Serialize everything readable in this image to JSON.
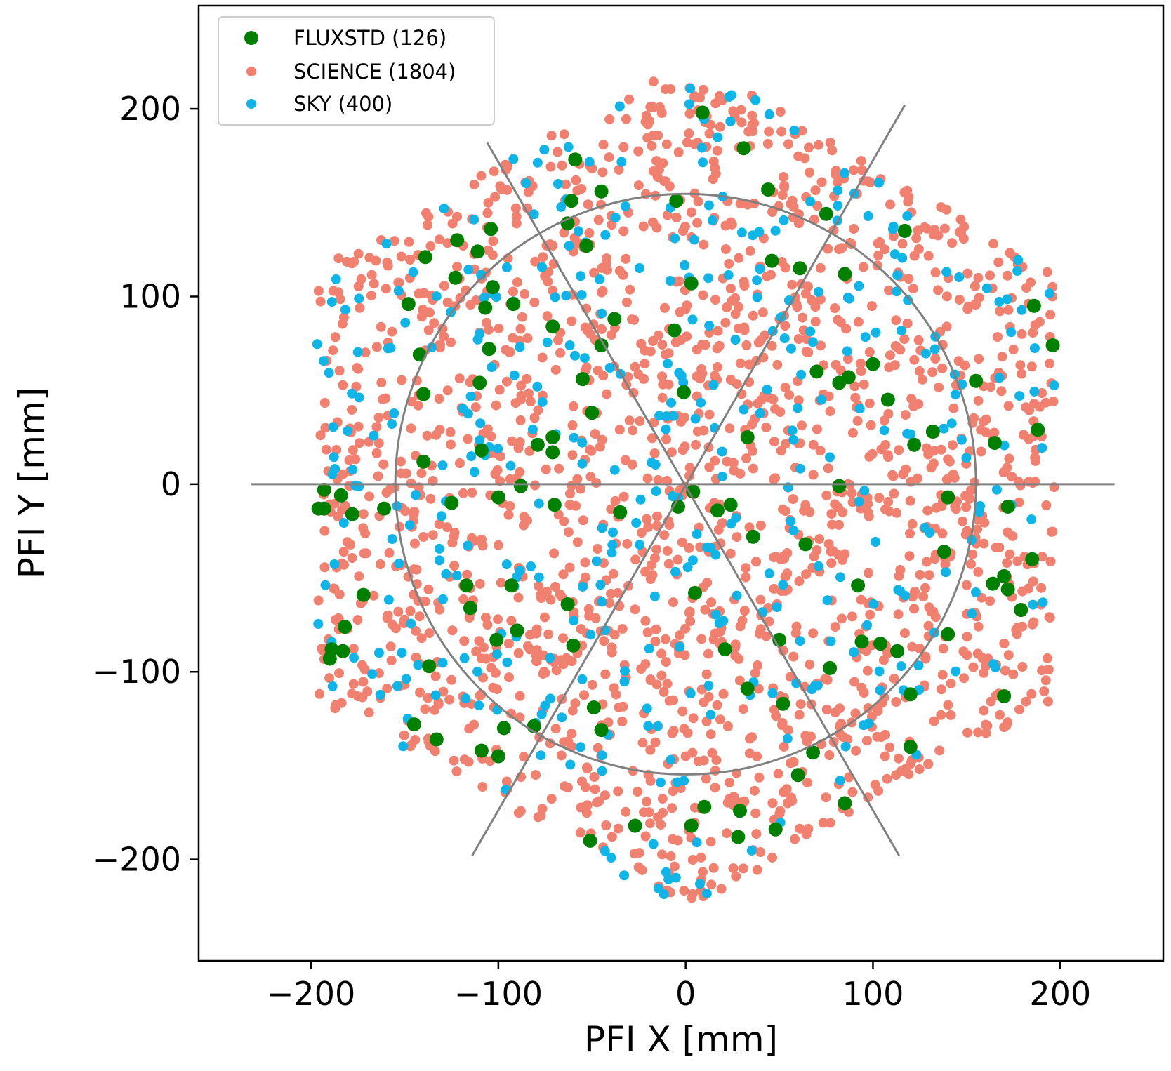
{
  "chart_data": {
    "type": "scatter",
    "title": "",
    "xlabel": "PFI X [mm]",
    "ylabel": "PFI Y [mm]",
    "xlim": [
      -260,
      255
    ],
    "ylim": [
      -254,
      255
    ],
    "xticks": [
      -200,
      -100,
      0,
      100,
      200
    ],
    "yticks": [
      -200,
      -100,
      0,
      100,
      200
    ],
    "xtick_labels": [
      "−200",
      "−100",
      "0",
      "100",
      "200"
    ],
    "ytick_labels": [
      "−200",
      "−100",
      "0",
      "100",
      "200"
    ],
    "grid": false,
    "legend_position": "top-left",
    "field_shape": "hexagon",
    "field_vertices": [
      [
        0,
        228
      ],
      [
        197,
        114
      ],
      [
        197,
        -114
      ],
      [
        0,
        -228
      ],
      [
        -197,
        -114
      ],
      [
        -197,
        114
      ]
    ],
    "overlays": {
      "circle": {
        "center": [
          0,
          0
        ],
        "radius": 155,
        "color": "#808080"
      },
      "lines": [
        {
          "from": [
            -232,
            0
          ],
          "to": [
            229,
            0
          ]
        },
        {
          "from": [
            -106,
            182
          ],
          "to": [
            114,
            -198
          ]
        },
        {
          "from": [
            -114,
            -198
          ],
          "to": [
            117,
            202
          ]
        }
      ]
    },
    "series": [
      {
        "name": "FLUXSTD (126)",
        "count": 126,
        "color": "#007f00",
        "marker_size": "large",
        "seed": 11,
        "sample_points": [
          [
            9,
            198
          ],
          [
            31,
            179
          ],
          [
            -59,
            173
          ],
          [
            44,
            157
          ],
          [
            -61,
            151
          ],
          [
            -5,
            151
          ],
          [
            -45,
            156
          ],
          [
            75,
            144
          ],
          [
            -63,
            139
          ],
          [
            -104,
            136
          ],
          [
            117,
            135
          ],
          [
            -122,
            130
          ],
          [
            -53,
            127
          ],
          [
            -111,
            124
          ],
          [
            -139,
            121
          ],
          [
            46,
            119
          ],
          [
            61,
            115
          ],
          [
            85,
            112
          ],
          [
            -123,
            110
          ],
          [
            3,
            107
          ],
          [
            -103,
            105
          ],
          [
            -148,
            96
          ],
          [
            -92,
            96
          ],
          [
            186,
            95
          ],
          [
            -107,
            94
          ],
          [
            -38,
            88
          ],
          [
            -71,
            84
          ],
          [
            -6,
            82
          ],
          [
            -45,
            74
          ],
          [
            196,
            74
          ],
          [
            -142,
            69
          ],
          [
            -105,
            72
          ],
          [
            100,
            64
          ],
          [
            70,
            60
          ],
          [
            -55,
            56
          ],
          [
            87,
            57
          ],
          [
            82,
            54
          ],
          [
            -110,
            54
          ],
          [
            155,
            55
          ],
          [
            -1,
            49
          ],
          [
            108,
            45
          ],
          [
            -140,
            48
          ],
          [
            -50,
            38
          ],
          [
            -71,
            25
          ],
          [
            132,
            28
          ],
          [
            188,
            29
          ],
          [
            -79,
            21
          ],
          [
            33,
            25
          ],
          [
            -71,
            17
          ],
          [
            -109,
            18
          ],
          [
            165,
            22
          ],
          [
            122,
            21
          ],
          [
            -140,
            12
          ],
          [
            -88,
            -1
          ],
          [
            82,
            -1
          ],
          [
            4,
            -4
          ],
          [
            -193,
            -3
          ],
          [
            -184,
            -6
          ],
          [
            -100,
            -7
          ],
          [
            140,
            -7
          ],
          [
            -125,
            -10
          ],
          [
            -70,
            -11
          ],
          [
            -161,
            -13
          ],
          [
            -4,
            -12
          ],
          [
            24,
            -11
          ],
          [
            -196,
            -13
          ],
          [
            17,
            -14
          ],
          [
            -35,
            -15
          ],
          [
            172,
            -12
          ],
          [
            -178,
            -16
          ],
          [
            36,
            -28
          ],
          [
            -193,
            -13
          ],
          [
            64,
            -32
          ],
          [
            138,
            -36
          ],
          [
            185,
            -40
          ],
          [
            -93,
            -54
          ],
          [
            -117,
            -54
          ],
          [
            164,
            -53
          ],
          [
            170,
            -49
          ],
          [
            92,
            -54
          ],
          [
            172,
            -56
          ],
          [
            -63,
            -64
          ],
          [
            -115,
            -66
          ],
          [
            5,
            -58
          ],
          [
            -172,
            -59
          ],
          [
            179,
            -67
          ],
          [
            -182,
            -76
          ],
          [
            -90,
            -78
          ],
          [
            140,
            -80
          ],
          [
            -101,
            -83
          ],
          [
            -60,
            -86
          ],
          [
            94,
            -84
          ],
          [
            104,
            -85
          ],
          [
            50,
            -83
          ],
          [
            -189,
            -88
          ],
          [
            21,
            -88
          ],
          [
            113,
            -89
          ],
          [
            -183,
            -89
          ],
          [
            -190,
            -93
          ],
          [
            -137,
            -97
          ],
          [
            77,
            -98
          ],
          [
            33,
            -109
          ],
          [
            120,
            -112
          ],
          [
            170,
            -113
          ],
          [
            52,
            -117
          ],
          [
            -49,
            -119
          ],
          [
            -97,
            -130
          ],
          [
            -145,
            -128
          ],
          [
            -81,
            -129
          ],
          [
            -45,
            -131
          ],
          [
            -133,
            -136
          ],
          [
            -109,
            -142
          ],
          [
            68,
            -143
          ],
          [
            120,
            -140
          ],
          [
            -100,
            -145
          ],
          [
            60,
            -155
          ],
          [
            10,
            -172
          ],
          [
            85,
            -170
          ],
          [
            -51,
            -190
          ],
          [
            29,
            -174
          ],
          [
            -27,
            -182
          ],
          [
            3,
            -182
          ],
          [
            48,
            -184
          ],
          [
            28,
            -188
          ]
        ]
      },
      {
        "name": "SCIENCE (1804)",
        "count": 1804,
        "color": "#f08070",
        "marker_size": "small",
        "seed": 23
      },
      {
        "name": "SKY (400)",
        "count": 400,
        "color": "#10b4e6",
        "marker_size": "small",
        "seed": 37
      }
    ]
  }
}
